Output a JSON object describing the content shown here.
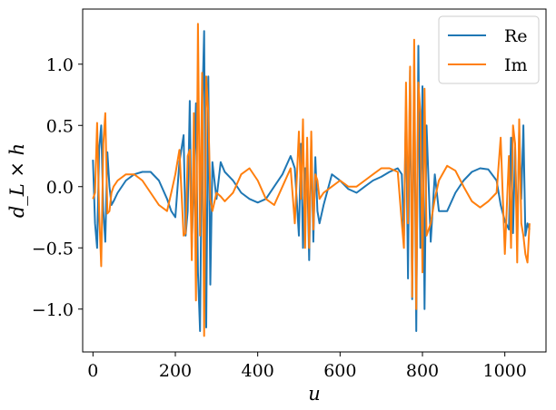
{
  "chart_data": {
    "type": "line",
    "title": "",
    "xlabel": "u",
    "ylabel": "d_L × h",
    "xlim": [
      -25,
      1100
    ],
    "ylim": [
      -1.35,
      1.45
    ],
    "xticks": [
      0,
      200,
      400,
      600,
      800,
      1000
    ],
    "xtick_labels": [
      "0",
      "200",
      "400",
      "600",
      "800",
      "1000"
    ],
    "yticks": [
      -1.0,
      -0.5,
      0.0,
      0.5,
      1.0
    ],
    "ytick_labels": [
      "−1.0",
      "−0.5",
      "0.0",
      "0.5",
      "1.0"
    ],
    "grid": false,
    "legend_position": "top-right",
    "colors": {
      "Re": "#1f77b4",
      "Im": "#ff7f0e"
    },
    "series": [
      {
        "name": "Re",
        "x": [
          0,
          5,
          10,
          15,
          20,
          25,
          30,
          35,
          40,
          45,
          50,
          60,
          80,
          100,
          120,
          140,
          160,
          180,
          190,
          200,
          210,
          220,
          225,
          230,
          235,
          240,
          245,
          250,
          255,
          260,
          265,
          270,
          275,
          280,
          285,
          290,
          300,
          310,
          320,
          340,
          360,
          380,
          400,
          420,
          440,
          460,
          480,
          490,
          500,
          505,
          510,
          515,
          520,
          525,
          530,
          535,
          540,
          545,
          550,
          560,
          580,
          600,
          620,
          640,
          660,
          680,
          700,
          720,
          740,
          750,
          755,
          760,
          765,
          770,
          775,
          780,
          785,
          790,
          795,
          800,
          805,
          810,
          820,
          830,
          840,
          860,
          880,
          900,
          920,
          940,
          960,
          980,
          990,
          1000,
          1010,
          1015,
          1020,
          1025,
          1030,
          1035,
          1040,
          1045,
          1050,
          1055,
          1060
        ],
        "values": [
          0.22,
          -0.3,
          -0.5,
          0.3,
          0.5,
          -0.2,
          -0.45,
          0.28,
          0.0,
          -0.15,
          -0.12,
          -0.05,
          0.05,
          0.1,
          0.12,
          0.12,
          0.05,
          -0.1,
          -0.2,
          -0.25,
          0.2,
          0.42,
          -0.4,
          -0.2,
          0.7,
          -0.5,
          0.1,
          0.68,
          -0.7,
          -1.18,
          0.6,
          1.27,
          -1.15,
          0.9,
          -0.8,
          0.2,
          -0.1,
          0.2,
          0.12,
          0.05,
          -0.05,
          -0.1,
          -0.13,
          -0.1,
          0.0,
          0.1,
          0.25,
          0.15,
          -0.4,
          0.35,
          -0.5,
          0.15,
          0.15,
          -0.6,
          0.38,
          -0.45,
          0.24,
          -0.2,
          -0.3,
          -0.15,
          0.1,
          0.05,
          -0.02,
          -0.05,
          0.0,
          0.05,
          0.08,
          0.12,
          0.15,
          0.1,
          -0.4,
          0.65,
          -0.75,
          0.95,
          -0.92,
          1.0,
          -1.18,
          1.15,
          -0.5,
          0.82,
          -1.0,
          0.5,
          -0.45,
          0.1,
          -0.2,
          -0.2,
          -0.05,
          0.05,
          0.12,
          0.15,
          0.14,
          0.05,
          -0.15,
          -0.28,
          -0.35,
          0.4,
          -0.38,
          0.32,
          -0.45,
          0.45,
          -0.1,
          0.5,
          -0.4,
          -0.3,
          -0.35
        ]
      },
      {
        "name": "Im",
        "x": [
          0,
          5,
          10,
          15,
          20,
          25,
          30,
          35,
          40,
          45,
          50,
          60,
          80,
          100,
          120,
          140,
          160,
          180,
          190,
          200,
          210,
          220,
          225,
          230,
          235,
          240,
          245,
          250,
          255,
          260,
          265,
          270,
          275,
          280,
          285,
          290,
          300,
          310,
          320,
          340,
          360,
          380,
          400,
          420,
          440,
          460,
          480,
          490,
          500,
          505,
          510,
          515,
          520,
          525,
          530,
          535,
          540,
          545,
          550,
          560,
          580,
          600,
          620,
          640,
          660,
          680,
          700,
          720,
          740,
          750,
          755,
          760,
          765,
          770,
          775,
          780,
          785,
          790,
          795,
          800,
          805,
          810,
          820,
          830,
          840,
          860,
          880,
          900,
          920,
          940,
          960,
          980,
          990,
          1000,
          1010,
          1015,
          1020,
          1025,
          1030,
          1035,
          1040,
          1045,
          1050,
          1055,
          1060
        ],
        "values": [
          -0.1,
          -0.05,
          0.52,
          -0.2,
          -0.65,
          0.35,
          0.6,
          -0.22,
          -0.2,
          -0.05,
          0.0,
          0.05,
          0.1,
          0.1,
          0.05,
          -0.05,
          -0.15,
          -0.2,
          -0.05,
          0.1,
          0.3,
          -0.4,
          -0.38,
          0.25,
          0.3,
          -0.6,
          0.6,
          -0.93,
          1.33,
          -0.4,
          0.93,
          -1.22,
          0.9,
          0.6,
          -0.1,
          -0.2,
          -0.05,
          -0.08,
          -0.12,
          -0.05,
          0.1,
          0.15,
          0.05,
          -0.1,
          -0.15,
          0.0,
          0.15,
          -0.3,
          0.45,
          -0.1,
          0.55,
          -0.5,
          0.4,
          -0.5,
          0.45,
          -0.35,
          0.1,
          0.05,
          -0.1,
          -0.05,
          0.0,
          0.05,
          0.0,
          0.0,
          0.05,
          0.1,
          0.15,
          0.15,
          0.12,
          -0.3,
          -0.5,
          0.85,
          -0.3,
          0.98,
          -0.9,
          1.2,
          -1.0,
          0.85,
          0.6,
          -0.7,
          0.8,
          -0.4,
          -0.3,
          -0.1,
          0.05,
          0.17,
          0.13,
          0.0,
          -0.12,
          -0.17,
          -0.12,
          -0.05,
          0.4,
          -0.55,
          0.25,
          -0.5,
          0.5,
          0.35,
          -0.62,
          0.55,
          -0.3,
          -0.4,
          -0.55,
          -0.62,
          -0.3
        ]
      }
    ]
  }
}
